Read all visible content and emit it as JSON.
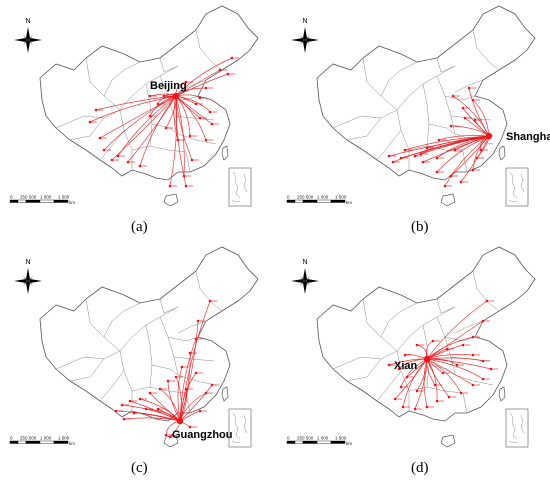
{
  "panels": [
    {
      "id": "a",
      "caption": "(a)",
      "hub": "Beijing"
    },
    {
      "id": "b",
      "caption": "(b)",
      "hub": "Shanghai"
    },
    {
      "id": "c",
      "caption": "(c)",
      "hub": "Guangzhou"
    },
    {
      "id": "d",
      "caption": "(d)",
      "hub": "Xian"
    }
  ],
  "compass_label": "N",
  "scale_bar": {
    "ticks": [
      "0",
      "250 500",
      "1 000",
      "1 500"
    ],
    "unit": "km"
  },
  "colors": {
    "route": "#e8151b",
    "boundary": "#8a8a8a",
    "outline": "#555555"
  }
}
